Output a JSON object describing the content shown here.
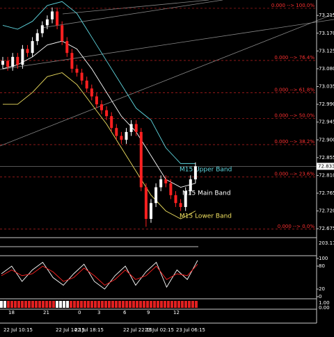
{
  "chart_data": {
    "type": "candlestick",
    "open": [
      73.09,
      73.1,
      73.085,
      73.11,
      73.09,
      73.13,
      73.12,
      73.15,
      73.17,
      73.19,
      73.205,
      73.225,
      73.19,
      73.15,
      73.12,
      73.08,
      73.07,
      73.05,
      73.03,
      73.01,
      72.99,
      72.975,
      72.96,
      72.93,
      72.91,
      72.9,
      72.92,
      72.94,
      72.92,
      72.78,
      72.7,
      72.74,
      72.78,
      72.8,
      72.79,
      72.76,
      72.74,
      72.73,
      72.77,
      72.8
    ],
    "high": [
      73.11,
      73.11,
      73.12,
      73.12,
      73.14,
      73.14,
      73.16,
      73.18,
      73.2,
      73.215,
      73.235,
      73.235,
      73.2,
      73.16,
      73.13,
      73.09,
      73.08,
      73.06,
      73.04,
      73.02,
      73.0,
      72.985,
      72.97,
      72.94,
      72.92,
      72.93,
      72.95,
      72.95,
      72.93,
      72.79,
      72.75,
      72.79,
      72.81,
      72.81,
      72.8,
      72.77,
      72.75,
      72.78,
      72.81,
      72.843
    ],
    "low": [
      73.08,
      73.075,
      73.075,
      73.08,
      73.08,
      73.11,
      73.11,
      73.14,
      73.16,
      73.18,
      73.195,
      73.18,
      73.14,
      73.11,
      73.07,
      73.06,
      73.04,
      73.02,
      73.0,
      72.98,
      72.965,
      72.95,
      72.92,
      72.9,
      72.89,
      72.89,
      72.91,
      72.91,
      72.77,
      72.68,
      72.69,
      72.73,
      72.77,
      72.78,
      72.75,
      72.73,
      72.72,
      72.72,
      72.76,
      72.79
    ],
    "close": [
      73.1,
      73.085,
      73.11,
      73.09,
      73.13,
      73.12,
      73.15,
      73.17,
      73.19,
      73.205,
      73.225,
      73.19,
      73.15,
      73.12,
      73.08,
      73.07,
      73.05,
      73.03,
      73.01,
      72.99,
      72.975,
      72.96,
      72.93,
      72.91,
      72.9,
      72.92,
      72.94,
      72.92,
      72.78,
      72.7,
      72.74,
      72.78,
      72.8,
      72.79,
      72.76,
      72.74,
      72.73,
      72.77,
      72.8,
      72.833
    ],
    "up_color": "#ffffff",
    "down_color": "#ff2020",
    "ylim": [
      72.656,
      73.254
    ],
    "yticks": [
      {
        "value": 73.215,
        "label": "73.215"
      },
      {
        "value": 73.17,
        "label": "73.170"
      },
      {
        "value": 73.125,
        "label": "73.125"
      },
      {
        "value": 73.08,
        "label": "73.080"
      },
      {
        "value": 73.035,
        "label": "73.035"
      },
      {
        "value": 72.99,
        "label": "72.990"
      },
      {
        "value": 72.945,
        "label": "72.945"
      },
      {
        "value": 72.9,
        "label": "72.900"
      },
      {
        "value": 72.855,
        "label": "72.855"
      },
      {
        "value": 72.81,
        "label": "72.810"
      },
      {
        "value": 72.765,
        "label": "72.765"
      },
      {
        "value": 72.72,
        "label": "72.720"
      },
      {
        "value": 72.675,
        "label": "72.675"
      }
    ],
    "last_price": 72.833,
    "fib_levels": [
      {
        "value": 73.233,
        "label": "0.000 --> 100.0%"
      },
      {
        "value": 73.101,
        "label": "0.000 --> 76.4%"
      },
      {
        "value": 73.019,
        "label": "0.000 --> 61.8%"
      },
      {
        "value": 72.954,
        "label": "0.000 --> 50.0%"
      },
      {
        "value": 72.888,
        "label": "0.000 --> 38.2%"
      },
      {
        "value": 72.806,
        "label": "0.000 --> 23.6%"
      },
      {
        "value": 72.674,
        "label": "0.000 --> 0.0%"
      }
    ],
    "band_x": [
      0,
      3,
      6,
      9,
      12,
      15,
      18,
      21,
      24,
      27,
      30,
      33,
      36,
      39
    ],
    "bands": [
      {
        "name": "M15 Upper Band",
        "color": "#5fd7e0",
        "values": [
          73.19,
          73.18,
          73.2,
          73.24,
          73.25,
          73.22,
          73.16,
          73.1,
          73.04,
          72.98,
          72.95,
          72.88,
          72.84,
          72.84
        ]
      },
      {
        "name": "M15 Main Band",
        "color": "#ffffff",
        "values": [
          73.08,
          73.09,
          73.11,
          73.14,
          73.15,
          73.13,
          73.08,
          73.02,
          72.96,
          72.92,
          72.86,
          72.8,
          72.78,
          72.79
        ]
      },
      {
        "name": "M15 Lower Band",
        "color": "#f0e060",
        "values": [
          72.99,
          72.99,
          73.02,
          73.06,
          73.07,
          73.04,
          72.99,
          72.94,
          72.88,
          72.82,
          72.76,
          72.72,
          72.7,
          72.72
        ]
      }
    ],
    "x_labels": [
      "22 Jul 10:15",
      "22 Jul 14:15",
      "22 Jul 18:15",
      "22 Jul 22:15",
      "23 Jul 02:15",
      "23 Jul 06:15"
    ],
    "hour_labels": [
      "18",
      "21",
      "0",
      "3",
      "6",
      "9",
      "12"
    ],
    "indicator_label": "203.17",
    "stoch": {
      "ylim": [
        0,
        100
      ],
      "yticks": [
        0,
        20,
        80,
        100
      ],
      "series": [
        {
          "color": "#ffffff",
          "values": [
            60,
            80,
            40,
            70,
            90,
            50,
            30,
            60,
            85,
            40,
            20,
            55,
            80,
            30,
            65,
            90,
            25,
            70,
            45,
            95
          ]
        },
        {
          "color": "#ff2020",
          "values": [
            55,
            70,
            55,
            60,
            80,
            65,
            40,
            50,
            75,
            55,
            30,
            45,
            70,
            45,
            55,
            80,
            45,
            60,
            55,
            85
          ]
        }
      ]
    },
    "strip_labels": [
      "1.00",
      "0.00"
    ]
  }
}
